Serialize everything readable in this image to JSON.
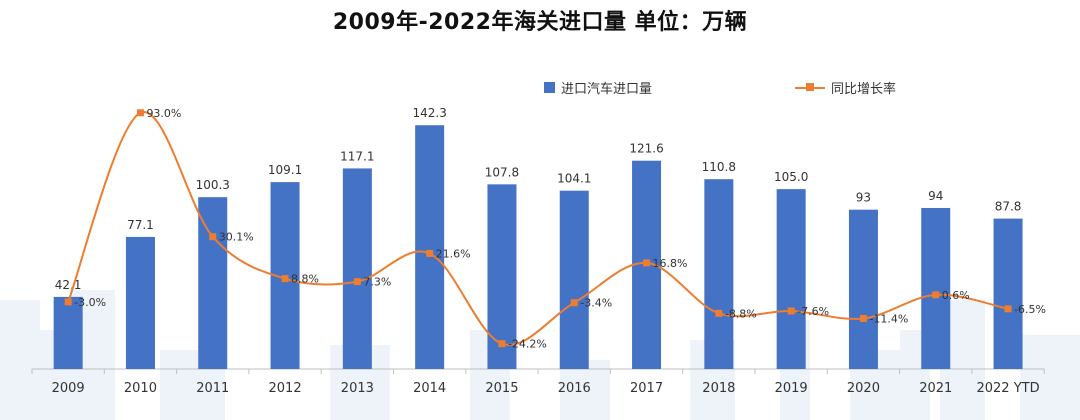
{
  "chart_data": {
    "type": "bar+line",
    "title": "2009年-2022年海关进口量  单位：万辆",
    "categories": [
      "2009",
      "2010",
      "2011",
      "2012",
      "2013",
      "2014",
      "2015",
      "2016",
      "2017",
      "2018",
      "2019",
      "2020",
      "2021",
      "2022 YTD"
    ],
    "series": [
      {
        "name": "进口汽车进口量",
        "type": "bar",
        "color": "#4472C4",
        "values": [
          42.1,
          77.1,
          100.3,
          109.1,
          117.1,
          142.3,
          107.8,
          104.1,
          121.6,
          110.8,
          105.0,
          93,
          94,
          87.8
        ],
        "labels": [
          "42.1",
          "77.1",
          "100.3",
          "109.1",
          "117.1",
          "142.3",
          "107.8",
          "104.1",
          "121.6",
          "110.8",
          "105.0",
          "93",
          "94",
          "87.8"
        ]
      },
      {
        "name": "同比增长率",
        "type": "line",
        "color": "#ED7D31",
        "values": [
          -3.0,
          93.0,
          30.1,
          8.8,
          7.3,
          21.6,
          -24.2,
          -3.4,
          16.8,
          -8.8,
          -7.6,
          -11.4,
          0.6,
          -6.5
        ],
        "labels": [
          "-3.0%",
          "93.0%",
          "30.1%",
          "8.8%",
          "7.3%",
          "21.6%",
          "-24.2%",
          "-3.4%",
          "16.8%",
          "-8.8%",
          "-7.6%",
          "-11.4%",
          "0.6%",
          "-6.5%"
        ]
      }
    ],
    "legend_position": "top-right",
    "grid": false
  }
}
